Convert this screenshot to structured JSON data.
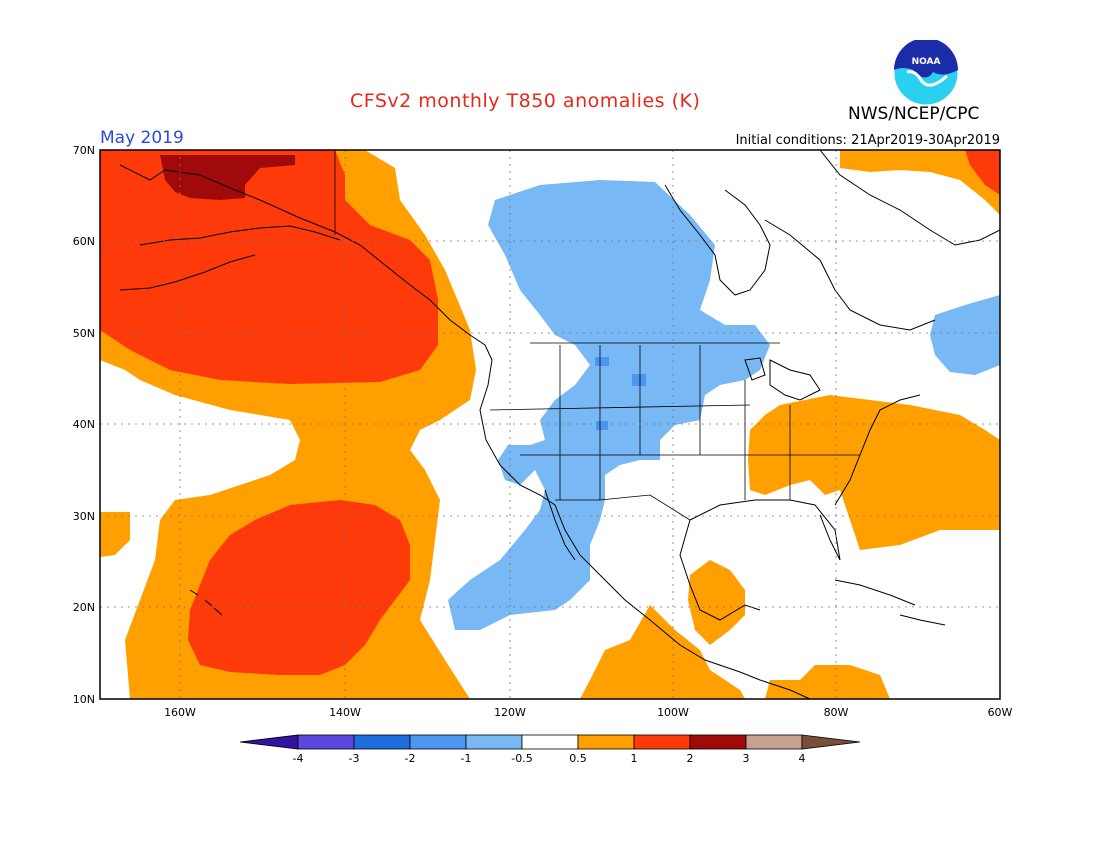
{
  "title": "CFSv2 monthly T850 anomalies (K)",
  "valid_month": "May 2019",
  "initial_conditions": "Initial conditions: 21Apr2019-30Apr2019",
  "agency": "NWS/NCEP/CPC",
  "logo_text": "NOAA",
  "lat_labels": [
    "70N",
    "60N",
    "50N",
    "40N",
    "30N",
    "20N",
    "10N"
  ],
  "lon_labels": [
    "160W",
    "140W",
    "120W",
    "100W",
    "80W",
    "60W"
  ],
  "colorbar": {
    "labels": [
      "-4",
      "-3",
      "-2",
      "-1",
      "-0.5",
      "0.5",
      "1",
      "2",
      "3",
      "4"
    ],
    "colors": [
      "#3212a0",
      "#5a48dc",
      "#1e6ee0",
      "#4a96f0",
      "#78b8f5",
      "#ffffff",
      "#ffa000",
      "#ff3a0a",
      "#a00a0a",
      "#c8a090",
      "#7a4e3a"
    ]
  },
  "colors": {
    "title": "#e8281c",
    "month": "#2a4bd8",
    "orange": "#ffa000",
    "red": "#ff3a0a",
    "darkred": "#a00a0a",
    "lightblue": "#78b8f5",
    "blue": "#4a96f0"
  }
}
